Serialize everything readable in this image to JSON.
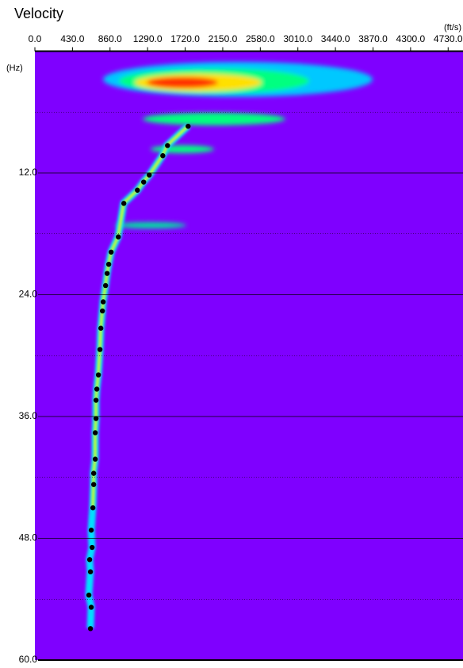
{
  "chart_data": {
    "type": "scatter",
    "title": "Velocity",
    "x_unit": "(ft/s)",
    "y_unit": "(Hz)",
    "color": "#000000",
    "background": "#7f00ff",
    "xlim": [
      0,
      4900
    ],
    "ylim": [
      0,
      60
    ],
    "xticks": [
      {
        "value": 0,
        "label": "0.0"
      },
      {
        "value": 430,
        "label": "430.0"
      },
      {
        "value": 860,
        "label": "860.0"
      },
      {
        "value": 1290,
        "label": "1290.0"
      },
      {
        "value": 1720,
        "label": "1720.0"
      },
      {
        "value": 2150,
        "label": "2150.0"
      },
      {
        "value": 2580,
        "label": "2580.0"
      },
      {
        "value": 3010,
        "label": "3010.0"
      },
      {
        "value": 3440,
        "label": "3440.0"
      },
      {
        "value": 3870,
        "label": "3870.0"
      },
      {
        "value": 4300,
        "label": "4300.0"
      },
      {
        "value": 4730,
        "label": "4730.0"
      }
    ],
    "yticks": [
      {
        "value": 12,
        "label": "12.0"
      },
      {
        "value": 24,
        "label": "24.0"
      },
      {
        "value": 36,
        "label": "36.0"
      },
      {
        "value": 48,
        "label": "48.0"
      },
      {
        "value": 60,
        "label": "60.0"
      }
    ],
    "y_minor_ticks": [
      6,
      18,
      30,
      42,
      54
    ],
    "grid": true,
    "x": [
      1754,
      1518,
      1464,
      1309,
      1245,
      1173,
      1018,
      955,
      873,
      845,
      827,
      809,
      782,
      773,
      755,
      745,
      727,
      709,
      700,
      700,
      691,
      691,
      673,
      673,
      664,
      645,
      655,
      627,
      636,
      618,
      645,
      636
    ],
    "values": [
      7.4,
      9.3,
      10.3,
      12.2,
      12.9,
      13.7,
      15.0,
      18.3,
      19.8,
      21.0,
      21.9,
      23.1,
      24.7,
      25.6,
      27.3,
      29.4,
      31.9,
      33.3,
      34.4,
      36.2,
      37.6,
      40.2,
      41.6,
      42.7,
      45.0,
      47.2,
      48.9,
      50.1,
      51.3,
      53.6,
      54.8,
      56.9
    ]
  }
}
